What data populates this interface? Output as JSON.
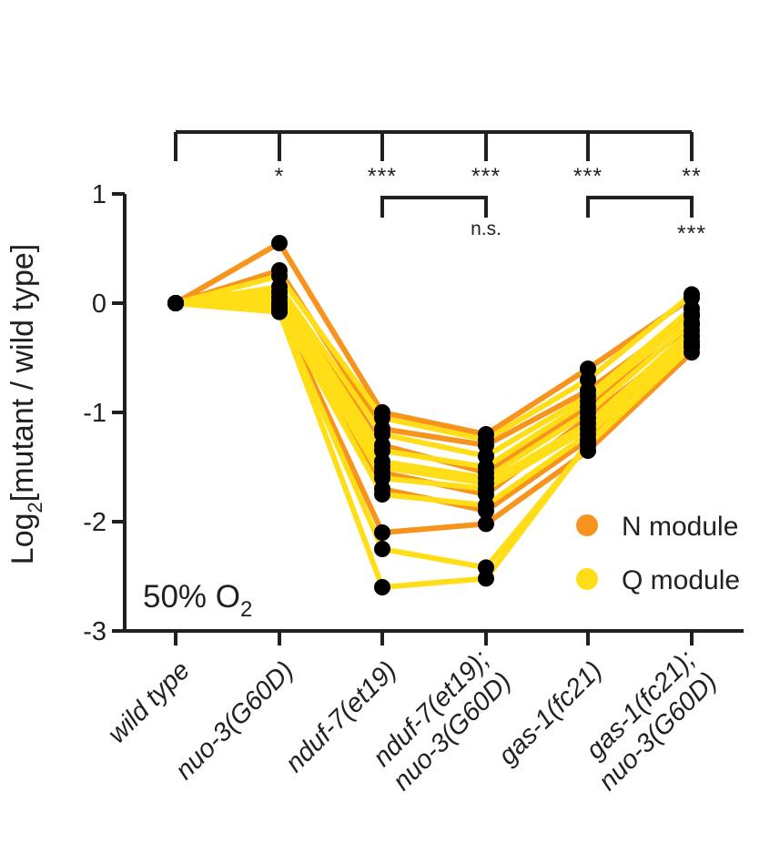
{
  "chart_data": {
    "type": "line",
    "ylabel_main": "Log",
    "ylabel_sub": "2",
    "ylabel_rest": "[mutant / wild type]",
    "annotation_main": "50% O",
    "annotation_sub": "2",
    "ylim": [
      -3,
      1
    ],
    "yticks": [
      1,
      0,
      -1,
      -2,
      -3
    ],
    "ytick_labels": [
      "1",
      "0",
      "-1",
      "-2",
      "-3"
    ],
    "categories": [
      "wild type",
      "nuo-3(G60D)",
      "nduf-7(et19)",
      "nduf-7(et19); nuo-3(G60D)",
      "gas-1(fc21)",
      "gas-1(fc21); nuo-3(G60D)"
    ],
    "category_lines": [
      [
        "wild type"
      ],
      [
        "nuo-3(G60D)"
      ],
      [
        "nduf-7(et19)"
      ],
      [
        "nduf-7(et19);",
        "nuo-3(G60D)"
      ],
      [
        "gas-1(fc21)"
      ],
      [
        "gas-1(fc21);",
        "nuo-3(G60D)"
      ]
    ],
    "legend": [
      {
        "name": "N module",
        "color": "#f7941d"
      },
      {
        "name": "Q module",
        "color": "#ffde17"
      }
    ],
    "significance": [
      {
        "from": 0,
        "to": 1,
        "label": "*"
      },
      {
        "from": 0,
        "to": 2,
        "label": "***"
      },
      {
        "from": 0,
        "to": 3,
        "label": "***"
      },
      {
        "from": 0,
        "to": 4,
        "label": "***"
      },
      {
        "from": 0,
        "to": 5,
        "label": "**"
      },
      {
        "from": 2,
        "to": 3,
        "label": "n.s."
      },
      {
        "from": 4,
        "to": 5,
        "label": "***"
      }
    ],
    "series": [
      {
        "module": "N",
        "values": [
          0,
          0.55,
          -1.0,
          -1.2,
          -0.6,
          0.05
        ]
      },
      {
        "module": "N",
        "values": [
          0,
          0.3,
          -1.15,
          -1.3,
          -0.8,
          -0.1
        ]
      },
      {
        "module": "N",
        "values": [
          0,
          0.1,
          -1.3,
          -1.55,
          -0.95,
          -0.2
        ]
      },
      {
        "module": "N",
        "values": [
          0,
          0.05,
          -1.55,
          -1.75,
          -1.05,
          -0.3
        ]
      },
      {
        "module": "N",
        "values": [
          0,
          0.0,
          -1.7,
          -1.9,
          -1.25,
          -0.4
        ]
      },
      {
        "module": "N",
        "values": [
          0,
          -0.05,
          -2.1,
          -2.02,
          -1.35,
          -0.45
        ]
      },
      {
        "module": "Q",
        "values": [
          0,
          0.25,
          -1.05,
          -1.25,
          -0.7,
          0.08
        ]
      },
      {
        "module": "Q",
        "values": [
          0,
          0.15,
          -1.2,
          -1.4,
          -0.85,
          -0.05
        ]
      },
      {
        "module": "Q",
        "values": [
          0,
          0.1,
          -1.35,
          -1.5,
          -0.9,
          -0.12
        ]
      },
      {
        "module": "Q",
        "values": [
          0,
          0.05,
          -1.45,
          -1.6,
          -1.0,
          -0.18
        ]
      },
      {
        "module": "Q",
        "values": [
          0,
          0.0,
          -1.5,
          -1.65,
          -1.1,
          -0.25
        ]
      },
      {
        "module": "Q",
        "values": [
          0,
          -0.02,
          -1.6,
          -1.7,
          -1.15,
          -0.3
        ]
      },
      {
        "module": "Q",
        "values": [
          0,
          -0.05,
          -1.75,
          -1.85,
          -1.2,
          -0.35
        ]
      },
      {
        "module": "Q",
        "values": [
          0,
          -0.08,
          -2.25,
          -2.42,
          -1.3,
          -0.4
        ]
      },
      {
        "module": "Q",
        "values": [
          0,
          -0.08,
          -2.6,
          -2.52,
          -1.28,
          -0.38
        ]
      }
    ]
  }
}
